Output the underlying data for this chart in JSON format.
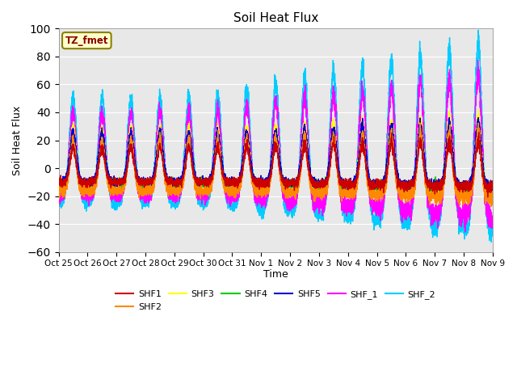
{
  "title": "Soil Heat Flux",
  "ylabel": "Soil Heat Flux",
  "xlabel": "Time",
  "ylim": [
    -60,
    100
  ],
  "yticks": [
    -60,
    -40,
    -20,
    0,
    20,
    40,
    60,
    80,
    100
  ],
  "annotation_text": "TZ_fmet",
  "annotation_box_color": "#ffffcc",
  "annotation_border_color": "#8B8000",
  "bg_color": "#e8e8e8",
  "series_colors": {
    "SHF1": "#cc0000",
    "SHF2": "#ff8800",
    "SHF3": "#ffff00",
    "SHF4": "#00cc00",
    "SHF5": "#0000cc",
    "SHF_1": "#ff00ff",
    "SHF_2": "#00ccff"
  },
  "x_tick_labels": [
    "Oct 25",
    "Oct 26",
    "Oct 27",
    "Oct 28",
    "Oct 29",
    "Oct 30",
    "Oct 31",
    "Nov 1",
    "Nov 2",
    "Nov 3",
    "Nov 4",
    "Nov 5",
    "Nov 6",
    "Nov 7",
    "Nov 8",
    "Nov 9"
  ],
  "n_days": 15,
  "points_per_day": 288
}
